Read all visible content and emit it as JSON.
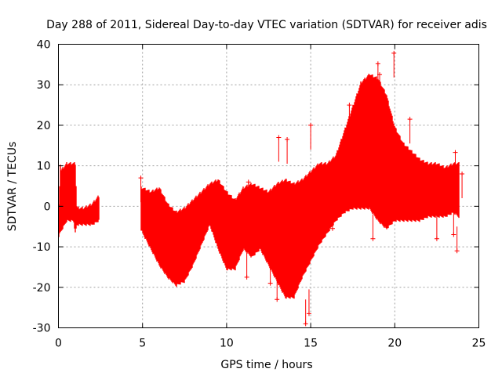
{
  "chart_data": {
    "type": "scatter",
    "title": "Day 288 of 2011, Sidereal Day-to-day VTEC variation (SDTVAR) for receiver adis",
    "xlabel": "GPS time / hours",
    "ylabel": "SDTVAR / TECUs",
    "xlim": [
      0,
      25
    ],
    "ylim": [
      -30,
      40
    ],
    "x_ticks": [
      0,
      5,
      10,
      15,
      20,
      25
    ],
    "y_ticks": [
      -30,
      -20,
      -10,
      0,
      10,
      20,
      30,
      40
    ],
    "grid": true,
    "marker": "+",
    "series_color": "#ff0000",
    "series": [
      {
        "name": "SDTVAR",
        "envelope": {
          "x": [
            0.0,
            0.1,
            0.5,
            0.9,
            1.0,
            1.1,
            1.5,
            2.0,
            2.4,
            4.9,
            5.0,
            5.5,
            6.0,
            6.5,
            7.0,
            7.5,
            8.0,
            8.5,
            9.0,
            9.5,
            10.0,
            10.5,
            11.0,
            11.5,
            12.0,
            12.5,
            13.0,
            13.5,
            14.0,
            14.5,
            15.0,
            15.5,
            16.0,
            16.5,
            17.0,
            17.5,
            18.0,
            18.5,
            19.0,
            19.5,
            20.0,
            20.5,
            21.0,
            21.5,
            22.0,
            22.5,
            23.0,
            23.5,
            23.8
          ],
          "upper": [
            -3,
            8,
            10,
            10,
            10,
            -1,
            -1,
            0,
            2,
            4,
            4,
            3,
            4,
            0,
            -2,
            -1,
            1,
            3,
            5,
            6,
            3,
            1,
            4,
            5,
            4,
            3,
            5,
            6,
            5,
            6,
            8,
            10,
            10,
            12,
            18,
            24,
            30,
            32,
            31,
            27,
            19,
            15,
            13,
            11,
            10,
            10,
            9,
            10,
            10
          ],
          "lower": [
            -7,
            -6,
            -3,
            -3,
            -6,
            -4,
            -4,
            -4,
            -3,
            -5,
            -6,
            -10,
            -14,
            -17,
            -19,
            -18,
            -14,
            -9,
            -4,
            -10,
            -15,
            -15,
            -10,
            -12,
            -10,
            -14,
            -18,
            -22,
            -22,
            -17,
            -13,
            -9,
            -6,
            -3,
            -1,
            0,
            0,
            0,
            -3,
            -5,
            -3,
            -3,
            -3,
            -3,
            -2,
            -2,
            -2,
            -1,
            -2
          ]
        },
        "outliers": [
          {
            "x": 19.0,
            "y": 35.2
          },
          {
            "x": 19.95,
            "y": 37.8
          },
          {
            "x": 19.1,
            "y": 32.5
          },
          {
            "x": 20.9,
            "y": 21.5
          },
          {
            "x": 18.5,
            "y": 32.0
          },
          {
            "x": 17.3,
            "y": 25.0
          },
          {
            "x": 15.0,
            "y": 20.0
          },
          {
            "x": 13.1,
            "y": 17.0
          },
          {
            "x": 13.6,
            "y": 16.5
          },
          {
            "x": 11.3,
            "y": 6.0
          },
          {
            "x": 11.2,
            "y": -17.5
          },
          {
            "x": 13.0,
            "y": -23.0
          },
          {
            "x": 14.7,
            "y": -29.0
          },
          {
            "x": 14.9,
            "y": -26.5
          },
          {
            "x": 12.6,
            "y": -19.0
          },
          {
            "x": 16.3,
            "y": -5.5
          },
          {
            "x": 18.7,
            "y": -8.0
          },
          {
            "x": 23.6,
            "y": 13.3
          },
          {
            "x": 23.7,
            "y": -11.0
          },
          {
            "x": 23.5,
            "y": -7.0
          },
          {
            "x": 22.5,
            "y": -8.0
          },
          {
            "x": 4.9,
            "y": 7.0
          },
          {
            "x": 24.0,
            "y": 8.0
          }
        ]
      }
    ]
  }
}
